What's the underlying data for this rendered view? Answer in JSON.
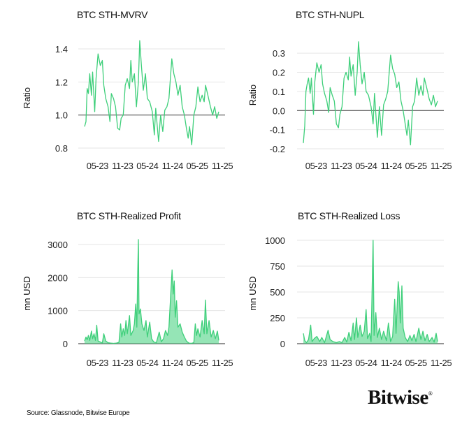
{
  "source": "Source: Glassnode, Bitwise Europe",
  "logo": "Bitwise",
  "line_color": "#3ecf7a",
  "chart_data": [
    {
      "type": "line",
      "title": "BTC STH-MVRV",
      "ylabel": "Ratio",
      "xlabel": "",
      "yticks": [
        0.8,
        1.0,
        1.2,
        1.4
      ],
      "ytick_labels": [
        "0.8",
        "1.0",
        "1.2",
        "1.4"
      ],
      "ylim": [
        0.8,
        1.4
      ],
      "reference_line": 1.0,
      "xtick_labels": [
        "05-23",
        "11-23",
        "05-24",
        "11-24",
        "05-25",
        "11-25"
      ],
      "grid": true,
      "points": [
        [
          "2023-02-10",
          0.93
        ],
        [
          "2023-02-20",
          0.96
        ],
        [
          "2023-03-01",
          1.16
        ],
        [
          "2023-03-10",
          1.13
        ],
        [
          "2023-03-20",
          1.25
        ],
        [
          "2023-04-01",
          1.12
        ],
        [
          "2023-04-10",
          1.26
        ],
        [
          "2023-04-25",
          1.02
        ],
        [
          "2023-05-05",
          1.22
        ],
        [
          "2023-05-20",
          1.37
        ],
        [
          "2023-06-05",
          1.3
        ],
        [
          "2023-06-20",
          1.33
        ],
        [
          "2023-07-01",
          1.18
        ],
        [
          "2023-07-15",
          1.1
        ],
        [
          "2023-08-01",
          1.05
        ],
        [
          "2023-08-15",
          0.96
        ],
        [
          "2023-08-25",
          1.13
        ],
        [
          "2023-09-10",
          1.1
        ],
        [
          "2023-09-25",
          1.05
        ],
        [
          "2023-10-10",
          0.92
        ],
        [
          "2023-10-25",
          0.91
        ],
        [
          "2023-11-05",
          0.98
        ],
        [
          "2023-11-20",
          1.0
        ],
        [
          "2023-12-05",
          1.18
        ],
        [
          "2023-12-20",
          1.22
        ],
        [
          "2024-01-05",
          1.16
        ],
        [
          "2024-01-15",
          1.33
        ],
        [
          "2024-01-25",
          1.2
        ],
        [
          "2024-02-10",
          1.25
        ],
        [
          "2024-02-25",
          1.05
        ],
        [
          "2024-03-10",
          1.2
        ],
        [
          "2024-03-20",
          1.45
        ],
        [
          "2024-04-01",
          1.3
        ],
        [
          "2024-04-15",
          1.15
        ],
        [
          "2024-05-01",
          1.25
        ],
        [
          "2024-05-15",
          1.1
        ],
        [
          "2024-06-01",
          1.08
        ],
        [
          "2024-06-20",
          1.02
        ],
        [
          "2024-07-05",
          0.88
        ],
        [
          "2024-07-15",
          1.04
        ],
        [
          "2024-08-05",
          0.84
        ],
        [
          "2024-08-20",
          1.0
        ],
        [
          "2024-09-05",
          0.9
        ],
        [
          "2024-09-20",
          1.03
        ],
        [
          "2024-10-05",
          1.05
        ],
        [
          "2024-10-20",
          1.1
        ],
        [
          "2024-11-10",
          1.34
        ],
        [
          "2024-11-25",
          1.25
        ],
        [
          "2024-12-10",
          1.2
        ],
        [
          "2024-12-25",
          1.12
        ],
        [
          "2025-01-10",
          1.18
        ],
        [
          "2025-01-25",
          1.05
        ],
        [
          "2025-02-10",
          1.0
        ],
        [
          "2025-02-25",
          0.92
        ],
        [
          "2025-03-10",
          0.86
        ],
        [
          "2025-03-20",
          0.93
        ],
        [
          "2025-04-05",
          0.82
        ],
        [
          "2025-04-20",
          1.0
        ],
        [
          "2025-05-05",
          1.05
        ],
        [
          "2025-05-20",
          1.17
        ],
        [
          "2025-06-05",
          1.08
        ],
        [
          "2025-06-20",
          1.12
        ],
        [
          "2025-07-05",
          1.08
        ],
        [
          "2025-07-15",
          1.18
        ],
        [
          "2025-08-01",
          1.12
        ],
        [
          "2025-08-20",
          1.05
        ],
        [
          "2025-09-05",
          1.0
        ],
        [
          "2025-09-20",
          1.05
        ],
        [
          "2025-10-05",
          0.98
        ],
        [
          "2025-10-20",
          1.02
        ]
      ]
    },
    {
      "type": "line",
      "title": "BTC STH-NUPL",
      "ylabel": "Ratio",
      "xlabel": "",
      "yticks": [
        -0.2,
        -0.1,
        0.0,
        0.1,
        0.2,
        0.3
      ],
      "ytick_labels": [
        "-0.2",
        "-0.1",
        "0.0",
        "0.1",
        "0.2",
        "0.3"
      ],
      "ylim": [
        -0.2,
        0.35
      ],
      "reference_line": 0.0,
      "xtick_labels": [
        "05-23",
        "11-23",
        "05-24",
        "11-24",
        "05-25",
        "11-25"
      ],
      "grid": true,
      "points": [
        [
          "2023-02-10",
          -0.17
        ],
        [
          "2023-02-20",
          -0.08
        ],
        [
          "2023-03-01",
          0.1
        ],
        [
          "2023-03-10",
          0.14
        ],
        [
          "2023-03-20",
          0.17
        ],
        [
          "2023-04-01",
          0.09
        ],
        [
          "2023-04-10",
          0.17
        ],
        [
          "2023-04-25",
          -0.02
        ],
        [
          "2023-05-05",
          0.15
        ],
        [
          "2023-05-20",
          0.25
        ],
        [
          "2023-06-05",
          0.2
        ],
        [
          "2023-06-20",
          0.24
        ],
        [
          "2023-07-01",
          0.14
        ],
        [
          "2023-07-15",
          0.09
        ],
        [
          "2023-08-01",
          0.05
        ],
        [
          "2023-08-15",
          -0.01
        ],
        [
          "2023-08-25",
          0.12
        ],
        [
          "2023-09-10",
          0.08
        ],
        [
          "2023-09-25",
          0.05
        ],
        [
          "2023-10-10",
          -0.07
        ],
        [
          "2023-10-25",
          -0.09
        ],
        [
          "2023-11-05",
          -0.02
        ],
        [
          "2023-11-20",
          0.02
        ],
        [
          "2023-12-05",
          0.17
        ],
        [
          "2023-12-20",
          0.2
        ],
        [
          "2024-01-05",
          0.16
        ],
        [
          "2024-01-15",
          0.28
        ],
        [
          "2024-01-25",
          0.18
        ],
        [
          "2024-02-10",
          0.24
        ],
        [
          "2024-02-25",
          0.08
        ],
        [
          "2024-03-10",
          0.2
        ],
        [
          "2024-03-20",
          0.36
        ],
        [
          "2024-04-01",
          0.24
        ],
        [
          "2024-04-15",
          0.14
        ],
        [
          "2024-05-01",
          0.2
        ],
        [
          "2024-05-15",
          0.1
        ],
        [
          "2024-06-01",
          0.08
        ],
        [
          "2024-06-20",
          0.02
        ],
        [
          "2024-07-05",
          -0.07
        ],
        [
          "2024-07-15",
          0.09
        ],
        [
          "2024-08-05",
          -0.14
        ],
        [
          "2024-08-20",
          0.02
        ],
        [
          "2024-09-05",
          -0.13
        ],
        [
          "2024-09-20",
          0.03
        ],
        [
          "2024-10-05",
          0.06
        ],
        [
          "2024-10-20",
          0.1
        ],
        [
          "2024-11-10",
          0.29
        ],
        [
          "2024-11-25",
          0.22
        ],
        [
          "2024-12-10",
          0.19
        ],
        [
          "2024-12-25",
          0.12
        ],
        [
          "2025-01-10",
          0.15
        ],
        [
          "2025-01-25",
          0.05
        ],
        [
          "2025-02-10",
          0.0
        ],
        [
          "2025-02-25",
          -0.07
        ],
        [
          "2025-03-10",
          -0.13
        ],
        [
          "2025-03-20",
          -0.05
        ],
        [
          "2025-04-05",
          -0.18
        ],
        [
          "2025-04-20",
          0.02
        ],
        [
          "2025-05-05",
          0.05
        ],
        [
          "2025-05-20",
          0.17
        ],
        [
          "2025-06-05",
          0.08
        ],
        [
          "2025-06-20",
          0.13
        ],
        [
          "2025-07-05",
          0.08
        ],
        [
          "2025-07-15",
          0.17
        ],
        [
          "2025-08-01",
          0.12
        ],
        [
          "2025-08-20",
          0.06
        ],
        [
          "2025-09-05",
          0.03
        ],
        [
          "2025-09-20",
          0.08
        ],
        [
          "2025-10-05",
          0.02
        ],
        [
          "2025-10-20",
          0.05
        ]
      ]
    },
    {
      "type": "area",
      "title": "BTC STH-Realized Profit",
      "ylabel": "mn USD",
      "xlabel": "",
      "yticks": [
        0,
        1000,
        2000,
        3000
      ],
      "ytick_labels": [
        "0",
        "1000",
        "2000",
        "3000"
      ],
      "ylim": [
        0,
        3000
      ],
      "xtick_labels": [
        "05-23",
        "11-23",
        "05-24",
        "11-24",
        "05-25",
        "11-25"
      ],
      "grid": true,
      "points": [
        [
          "2023-02-10",
          80
        ],
        [
          "2023-02-20",
          200
        ],
        [
          "2023-03-01",
          120
        ],
        [
          "2023-03-10",
          250
        ],
        [
          "2023-03-20",
          100
        ],
        [
          "2023-04-01",
          380
        ],
        [
          "2023-04-10",
          150
        ],
        [
          "2023-04-20",
          300
        ],
        [
          "2023-05-01",
          100
        ],
        [
          "2023-05-10",
          560
        ],
        [
          "2023-05-20",
          80
        ],
        [
          "2023-06-05",
          50
        ],
        [
          "2023-06-20",
          20
        ],
        [
          "2023-07-01",
          300
        ],
        [
          "2023-07-15",
          80
        ],
        [
          "2023-08-01",
          30
        ],
        [
          "2023-08-20",
          20
        ],
        [
          "2023-09-10",
          10
        ],
        [
          "2023-10-01",
          20
        ],
        [
          "2023-10-20",
          40
        ],
        [
          "2023-11-01",
          600
        ],
        [
          "2023-11-10",
          200
        ],
        [
          "2023-11-20",
          450
        ],
        [
          "2023-12-01",
          250
        ],
        [
          "2023-12-10",
          700
        ],
        [
          "2023-12-20",
          300
        ],
        [
          "2024-01-05",
          850
        ],
        [
          "2024-01-15",
          250
        ],
        [
          "2024-02-01",
          400
        ],
        [
          "2024-02-10",
          600
        ],
        [
          "2024-02-20",
          1200
        ],
        [
          "2024-02-28",
          500
        ],
        [
          "2024-03-05",
          2100
        ],
        [
          "2024-03-10",
          3150
        ],
        [
          "2024-03-15",
          900
        ],
        [
          "2024-03-25",
          1050
        ],
        [
          "2024-04-05",
          600
        ],
        [
          "2024-04-20",
          400
        ],
        [
          "2024-05-05",
          700
        ],
        [
          "2024-05-15",
          200
        ],
        [
          "2024-06-01",
          650
        ],
        [
          "2024-06-15",
          150
        ],
        [
          "2024-07-01",
          50
        ],
        [
          "2024-07-20",
          30
        ],
        [
          "2024-08-10",
          350
        ],
        [
          "2024-08-25",
          60
        ],
        [
          "2024-09-10",
          150
        ],
        [
          "2024-09-25",
          400
        ],
        [
          "2024-10-10",
          250
        ],
        [
          "2024-10-20",
          500
        ],
        [
          "2024-11-05",
          1700
        ],
        [
          "2024-11-12",
          2230
        ],
        [
          "2024-11-20",
          1500
        ],
        [
          "2024-11-28",
          1900
        ],
        [
          "2024-12-05",
          800
        ],
        [
          "2024-12-15",
          1300
        ],
        [
          "2024-12-25",
          500
        ],
        [
          "2025-01-10",
          600
        ],
        [
          "2025-01-25",
          350
        ],
        [
          "2025-02-10",
          200
        ],
        [
          "2025-02-25",
          80
        ],
        [
          "2025-03-15",
          20
        ],
        [
          "2025-04-01",
          10
        ],
        [
          "2025-04-20",
          30
        ],
        [
          "2025-05-01",
          600
        ],
        [
          "2025-05-10",
          250
        ],
        [
          "2025-05-20",
          450
        ],
        [
          "2025-06-05",
          200
        ],
        [
          "2025-06-20",
          700
        ],
        [
          "2025-07-05",
          300
        ],
        [
          "2025-07-14",
          1320
        ],
        [
          "2025-07-25",
          300
        ],
        [
          "2025-08-10",
          700
        ],
        [
          "2025-08-25",
          200
        ],
        [
          "2025-09-10",
          400
        ],
        [
          "2025-09-25",
          150
        ],
        [
          "2025-10-10",
          380
        ],
        [
          "2025-10-20",
          100
        ]
      ]
    },
    {
      "type": "area",
      "title": "BTC STH-Realized Loss",
      "ylabel": "mn USD",
      "xlabel": "",
      "yticks": [
        0,
        250,
        500,
        750,
        1000
      ],
      "ytick_labels": [
        "0",
        "250",
        "500",
        "750",
        "1000"
      ],
      "ylim": [
        0,
        1000
      ],
      "xtick_labels": [
        "05-23",
        "11-23",
        "05-24",
        "11-24",
        "05-25",
        "11-25"
      ],
      "grid": true,
      "points": [
        [
          "2023-02-10",
          100
        ],
        [
          "2023-02-20",
          30
        ],
        [
          "2023-03-05",
          10
        ],
        [
          "2023-03-20",
          40
        ],
        [
          "2023-04-05",
          180
        ],
        [
          "2023-04-15",
          20
        ],
        [
          "2023-05-01",
          50
        ],
        [
          "2023-05-20",
          70
        ],
        [
          "2023-06-10",
          20
        ],
        [
          "2023-06-25",
          60
        ],
        [
          "2023-07-15",
          10
        ],
        [
          "2023-08-10",
          130
        ],
        [
          "2023-08-25",
          40
        ],
        [
          "2023-09-15",
          20
        ],
        [
          "2023-10-10",
          10
        ],
        [
          "2023-11-01",
          20
        ],
        [
          "2023-11-20",
          10
        ],
        [
          "2023-12-10",
          60
        ],
        [
          "2023-12-25",
          15
        ],
        [
          "2024-01-10",
          110
        ],
        [
          "2024-01-25",
          30
        ],
        [
          "2024-02-10",
          200
        ],
        [
          "2024-02-20",
          40
        ],
        [
          "2024-03-05",
          250
        ],
        [
          "2024-03-15",
          60
        ],
        [
          "2024-04-01",
          180
        ],
        [
          "2024-04-15",
          70
        ],
        [
          "2024-05-01",
          120
        ],
        [
          "2024-05-15",
          330
        ],
        [
          "2024-05-25",
          50
        ],
        [
          "2024-06-10",
          100
        ],
        [
          "2024-06-20",
          20
        ],
        [
          "2024-07-05",
          1000
        ],
        [
          "2024-07-12",
          80
        ],
        [
          "2024-07-25",
          300
        ],
        [
          "2024-08-05",
          60
        ],
        [
          "2024-08-20",
          150
        ],
        [
          "2024-09-05",
          40
        ],
        [
          "2024-09-20",
          120
        ],
        [
          "2024-10-10",
          30
        ],
        [
          "2024-10-25",
          200
        ],
        [
          "2024-11-10",
          20
        ],
        [
          "2024-11-25",
          70
        ],
        [
          "2024-12-10",
          430
        ],
        [
          "2024-12-20",
          100
        ],
        [
          "2025-01-05",
          600
        ],
        [
          "2025-01-12",
          500
        ],
        [
          "2025-01-20",
          200
        ],
        [
          "2025-02-01",
          560
        ],
        [
          "2025-02-10",
          150
        ],
        [
          "2025-02-25",
          60
        ],
        [
          "2025-03-15",
          20
        ],
        [
          "2025-04-01",
          80
        ],
        [
          "2025-04-15",
          30
        ],
        [
          "2025-05-01",
          90
        ],
        [
          "2025-05-15",
          20
        ],
        [
          "2025-06-05",
          150
        ],
        [
          "2025-06-20",
          40
        ],
        [
          "2025-07-05",
          120
        ],
        [
          "2025-07-20",
          30
        ],
        [
          "2025-08-05",
          90
        ],
        [
          "2025-08-20",
          20
        ],
        [
          "2025-09-10",
          60
        ],
        [
          "2025-09-25",
          15
        ],
        [
          "2025-10-10",
          100
        ],
        [
          "2025-10-20",
          20
        ]
      ]
    }
  ]
}
